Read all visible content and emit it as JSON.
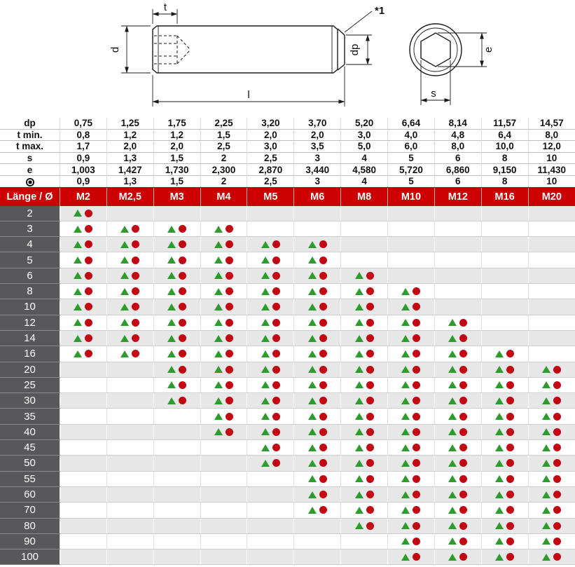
{
  "title": "Gewindestift mit Innensechskant und Kegelkuppe - Maßtabelle",
  "colors": {
    "header_red": "#CC0000",
    "label_gray": "#58585A",
    "alt_row": "#E7E7E7",
    "marker_green": "#2E9B2E",
    "marker_red": "#C20713"
  },
  "drawing": {
    "labels": {
      "t": "t",
      "d": "d",
      "dp": "dp",
      "l": "l",
      "note": "*1",
      "e": "e",
      "s": "s"
    }
  },
  "spec_table": {
    "rows": [
      {
        "label": "dp",
        "values": [
          "0,75",
          "1,25",
          "1,75",
          "2,25",
          "3,20",
          "3,70",
          "5,20",
          "6,64",
          "8,14",
          "11,57",
          "14,57"
        ]
      },
      {
        "label": "t min.",
        "values": [
          "0,8",
          "1,2",
          "1,2",
          "1,5",
          "2,0",
          "2,0",
          "3,0",
          "4,0",
          "4,8",
          "6,4",
          "8,0"
        ]
      },
      {
        "label": "t max.",
        "values": [
          "1,7",
          "2,0",
          "2,0",
          "2,5",
          "3,0",
          "3,5",
          "5,0",
          "6,0",
          "8,0",
          "10,0",
          "12,0"
        ]
      },
      {
        "label": "s",
        "values": [
          "0,9",
          "1,3",
          "1,5",
          "2",
          "2,5",
          "3",
          "4",
          "5",
          "6",
          "8",
          "10"
        ]
      },
      {
        "label": "e",
        "values": [
          "1,003",
          "1,427",
          "1,730",
          "2,300",
          "2,870",
          "3,440",
          "4,580",
          "5,720",
          "6,860",
          "9,150",
          "11,430"
        ]
      },
      {
        "label": "",
        "icon": "hex-key-icon",
        "values": [
          "0,9",
          "1,3",
          "1,5",
          "2",
          "2,5",
          "3",
          "4",
          "5",
          "6",
          "8",
          "10"
        ]
      }
    ]
  },
  "matrix": {
    "corner_label": "Länge / Ø",
    "columns": [
      "M2",
      "M2,5",
      "M3",
      "M4",
      "M5",
      "M6",
      "M8",
      "M10",
      "M12",
      "M16",
      "M20"
    ],
    "marker_icons": [
      "available-triangle-icon",
      "available-circle-icon"
    ],
    "rows": [
      {
        "length": "2",
        "available": [
          1,
          0,
          0,
          0,
          0,
          0,
          0,
          0,
          0,
          0,
          0
        ]
      },
      {
        "length": "3",
        "available": [
          1,
          1,
          1,
          1,
          0,
          0,
          0,
          0,
          0,
          0,
          0
        ]
      },
      {
        "length": "4",
        "available": [
          1,
          1,
          1,
          1,
          1,
          1,
          0,
          0,
          0,
          0,
          0
        ]
      },
      {
        "length": "5",
        "available": [
          1,
          1,
          1,
          1,
          1,
          1,
          0,
          0,
          0,
          0,
          0
        ]
      },
      {
        "length": "6",
        "available": [
          1,
          1,
          1,
          1,
          1,
          1,
          1,
          0,
          0,
          0,
          0
        ]
      },
      {
        "length": "8",
        "available": [
          1,
          1,
          1,
          1,
          1,
          1,
          1,
          1,
          0,
          0,
          0
        ]
      },
      {
        "length": "10",
        "available": [
          1,
          1,
          1,
          1,
          1,
          1,
          1,
          1,
          0,
          0,
          0
        ]
      },
      {
        "length": "12",
        "available": [
          1,
          1,
          1,
          1,
          1,
          1,
          1,
          1,
          1,
          0,
          0
        ]
      },
      {
        "length": "14",
        "available": [
          1,
          1,
          1,
          1,
          1,
          1,
          1,
          1,
          1,
          0,
          0
        ]
      },
      {
        "length": "16",
        "available": [
          1,
          1,
          1,
          1,
          1,
          1,
          1,
          1,
          1,
          1,
          0
        ]
      },
      {
        "length": "20",
        "available": [
          0,
          0,
          1,
          1,
          1,
          1,
          1,
          1,
          1,
          1,
          1
        ]
      },
      {
        "length": "25",
        "available": [
          0,
          0,
          1,
          1,
          1,
          1,
          1,
          1,
          1,
          1,
          1
        ]
      },
      {
        "length": "30",
        "available": [
          0,
          0,
          1,
          1,
          1,
          1,
          1,
          1,
          1,
          1,
          1
        ]
      },
      {
        "length": "35",
        "available": [
          0,
          0,
          0,
          1,
          1,
          1,
          1,
          1,
          1,
          1,
          1
        ]
      },
      {
        "length": "40",
        "available": [
          0,
          0,
          0,
          1,
          1,
          1,
          1,
          1,
          1,
          1,
          1
        ]
      },
      {
        "length": "45",
        "available": [
          0,
          0,
          0,
          0,
          1,
          1,
          1,
          1,
          1,
          1,
          1
        ]
      },
      {
        "length": "50",
        "available": [
          0,
          0,
          0,
          0,
          1,
          1,
          1,
          1,
          1,
          1,
          1
        ]
      },
      {
        "length": "55",
        "available": [
          0,
          0,
          0,
          0,
          0,
          1,
          1,
          1,
          1,
          1,
          1
        ]
      },
      {
        "length": "60",
        "available": [
          0,
          0,
          0,
          0,
          0,
          1,
          1,
          1,
          1,
          1,
          1
        ]
      },
      {
        "length": "70",
        "available": [
          0,
          0,
          0,
          0,
          0,
          1,
          1,
          1,
          1,
          1,
          1
        ]
      },
      {
        "length": "80",
        "available": [
          0,
          0,
          0,
          0,
          0,
          0,
          1,
          1,
          1,
          1,
          1
        ]
      },
      {
        "length": "90",
        "available": [
          0,
          0,
          0,
          0,
          0,
          0,
          0,
          1,
          1,
          1,
          1
        ]
      },
      {
        "length": "100",
        "available": [
          0,
          0,
          0,
          0,
          0,
          0,
          0,
          1,
          1,
          1,
          1
        ]
      }
    ]
  }
}
